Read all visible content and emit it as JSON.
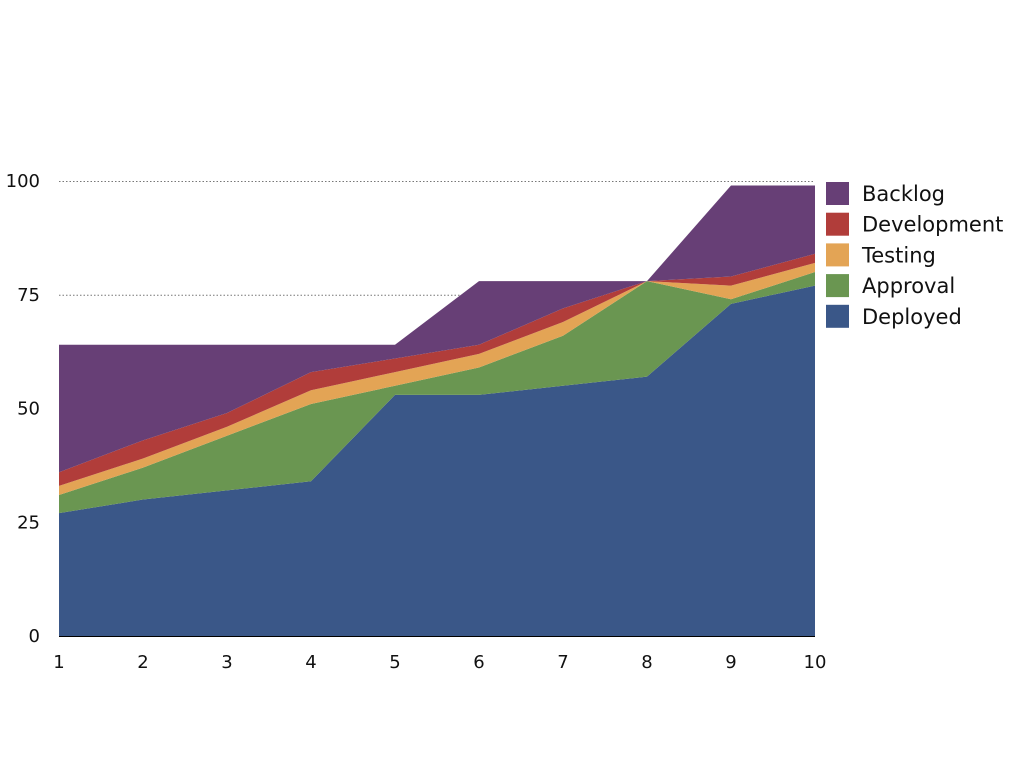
{
  "chart_data": {
    "type": "area",
    "stacked": true,
    "title": "",
    "xlabel": "",
    "ylabel": "",
    "x": [
      1,
      2,
      3,
      4,
      5,
      6,
      7,
      8,
      9,
      10
    ],
    "x_tick_labels": [
      "1",
      "2",
      "3",
      "4",
      "5",
      "6",
      "7",
      "8",
      "9",
      "10"
    ],
    "ylim": [
      0,
      100
    ],
    "y_ticks": [
      0,
      25,
      50,
      75,
      100
    ],
    "y_tick_labels": [
      "0",
      "25",
      "50",
      "75",
      "100"
    ],
    "grid": {
      "horizontal": true,
      "style": "dotted",
      "shown_at": [
        75,
        100
      ]
    },
    "legend": {
      "placement": "right-top"
    },
    "series": [
      {
        "name": "Deployed",
        "color": "#3a5788",
        "values": [
          27,
          30,
          32,
          34,
          53,
          53,
          55,
          57,
          73,
          77
        ]
      },
      {
        "name": "Approval",
        "color": "#6a9651",
        "values": [
          4,
          7,
          12,
          17,
          2,
          6,
          11,
          21,
          1,
          3
        ]
      },
      {
        "name": "Testing",
        "color": "#e3a455",
        "values": [
          2,
          2,
          2,
          3,
          3,
          3,
          3,
          0,
          3,
          2
        ]
      },
      {
        "name": "Development",
        "color": "#b13d3a",
        "values": [
          3,
          4,
          3,
          4,
          3,
          2,
          3,
          0,
          2,
          2
        ]
      },
      {
        "name": "Backlog",
        "color": "#673f76",
        "values": [
          28,
          21,
          15,
          6,
          3,
          14,
          6,
          0,
          20,
          15
        ]
      }
    ]
  }
}
